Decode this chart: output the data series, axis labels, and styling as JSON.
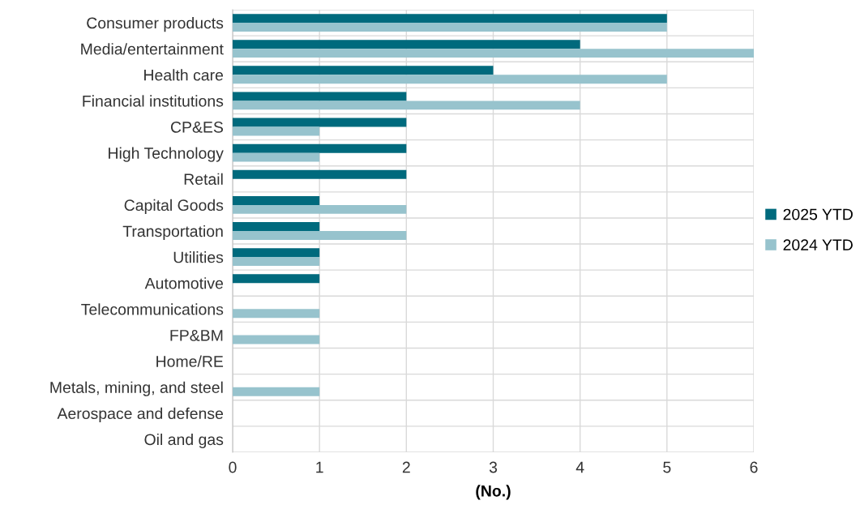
{
  "chart_data": {
    "type": "bar",
    "orientation": "horizontal",
    "xlabel": "(No.)",
    "categories": [
      "Consumer products",
      "Media/entertainment",
      "Health care",
      "Financial institutions",
      "CP&ES",
      "High Technology",
      "Retail",
      "Capital Goods",
      "Transportation",
      "Utilities",
      "Automotive",
      "Telecommunications",
      "FP&BM",
      "Home/RE",
      "Metals, mining, and steel",
      "Aerospace and defense",
      "Oil and gas"
    ],
    "series": [
      {
        "name": "2025 YTD",
        "color": "#006a7d",
        "values": [
          5,
          4,
          3,
          2,
          2,
          2,
          2,
          1,
          1,
          1,
          1,
          0,
          0,
          0,
          0,
          0,
          0
        ]
      },
      {
        "name": "2024 YTD",
        "color": "#97c3cd",
        "values": [
          5,
          6,
          5,
          4,
          1,
          1,
          0,
          2,
          2,
          1,
          0,
          1,
          1,
          0,
          1,
          0,
          0
        ]
      }
    ],
    "xlim": [
      0,
      6
    ],
    "xticks": [
      0,
      1,
      2,
      3,
      4,
      5,
      6
    ],
    "grid": true,
    "legend": "right"
  }
}
